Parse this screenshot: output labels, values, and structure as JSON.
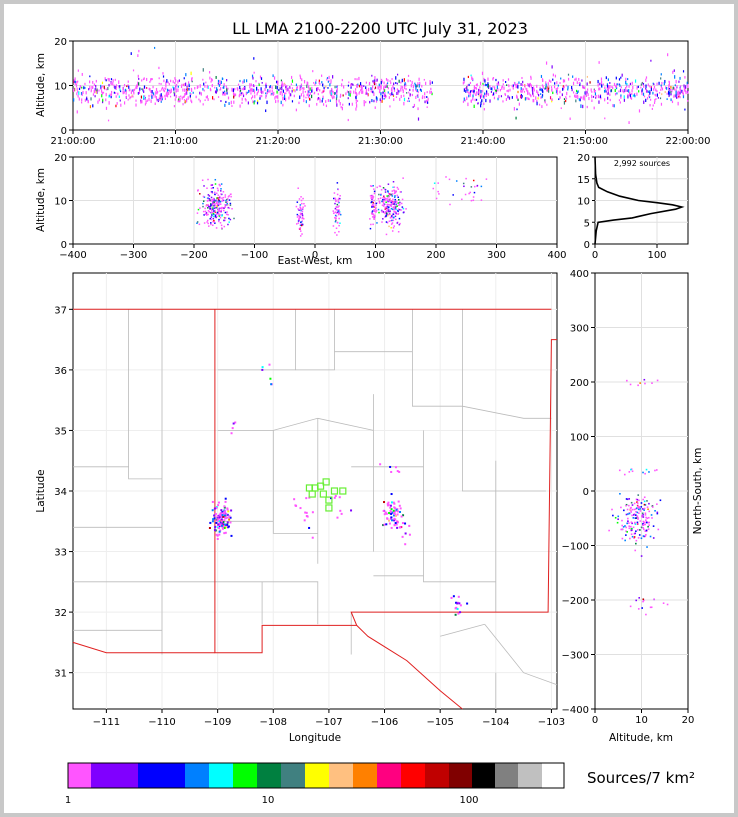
{
  "title": "LL LMA 2100-2200 UTC July 31, 2023",
  "time_height": {
    "ylabel": "Altitude, km",
    "ylim": [
      0,
      20
    ],
    "y_ticks": [
      "0",
      "10",
      "20"
    ],
    "x_ticks": [
      "21:00:00",
      "21:10:00",
      "21:20:00",
      "21:30:00",
      "21:40:00",
      "21:50:00",
      "22:00:00"
    ]
  },
  "ew_height": {
    "ylabel": "Altitude, km",
    "xlabel": "East-West, km",
    "ylim": [
      0,
      20
    ],
    "xlim": [
      -400,
      400
    ],
    "y_ticks": [
      "0",
      "10",
      "20"
    ],
    "x_ticks": [
      "−400",
      "−300",
      "−200",
      "−100",
      "0",
      "100",
      "200",
      "300",
      "400"
    ]
  },
  "histogram": {
    "label": "2,992 sources",
    "x_ticks": [
      "0",
      "100"
    ],
    "y_ticks": [
      "0",
      "5",
      "10",
      "15",
      "20"
    ]
  },
  "plan_view": {
    "xlabel": "Longitude",
    "ylabel": "Latitude",
    "xlim": [
      -111.6,
      -102.9
    ],
    "ylim": [
      30.4,
      37.6
    ],
    "x_ticks": [
      "−111",
      "−110",
      "−109",
      "−108",
      "−107",
      "−106",
      "−105",
      "−104",
      "−103"
    ],
    "y_ticks": [
      "31",
      "32",
      "33",
      "34",
      "35",
      "36",
      "37"
    ]
  },
  "ns_height": {
    "xlabel": "Altitude, km",
    "ylabel": "North-South, km",
    "xlim": [
      0,
      20
    ],
    "ylim": [
      -400,
      400
    ],
    "x_ticks": [
      "0",
      "10",
      "20"
    ],
    "y_ticks": [
      "−400",
      "−300",
      "−200",
      "−100",
      "0",
      "100",
      "200",
      "300",
      "400"
    ]
  },
  "colorbar": {
    "label": "Sources/7 km²",
    "tick_labels": [
      "1",
      "10",
      "100"
    ],
    "colors": [
      "#ff55ff",
      "#8000ff",
      "#0000ff",
      "#0080ff",
      "#00ffff",
      "#00ff00",
      "#008040",
      "#408080",
      "#ffff00",
      "#ffc080",
      "#ff8000",
      "#ff0080",
      "#ff0000",
      "#c00000",
      "#800000",
      "#000000",
      "#808080",
      "#c0c0c0",
      "#ffffff"
    ]
  },
  "chart_data": [
    {
      "type": "scatter",
      "title": "LL LMA 2100-2200 UTC July 31, 2023",
      "xlabel": "",
      "ylabel": "Altitude, km",
      "xlim": [
        "21:00:00",
        "22:00:00"
      ],
      "ylim": [
        0,
        20
      ],
      "clusters": [
        {
          "t": [
            0,
            8
          ],
          "alt": [
            5,
            12
          ]
        },
        {
          "t": [
            8,
            24
          ],
          "alt": [
            6,
            13
          ]
        },
        {
          "t": [
            24,
            35
          ],
          "alt": [
            6,
            12
          ]
        },
        {
          "t": [
            38,
            60
          ],
          "alt": [
            6,
            13
          ]
        }
      ]
    },
    {
      "type": "scatter",
      "xlabel": "East-West, km",
      "ylabel": "Altitude, km",
      "xlim": [
        -400,
        400
      ],
      "ylim": [
        0,
        20
      ],
      "clusters": [
        {
          "x": -165,
          "alt": 9
        },
        {
          "x": -25,
          "alt": 7
        },
        {
          "x": 35,
          "alt": 8
        },
        {
          "x": 95,
          "alt": 9
        },
        {
          "x": 125,
          "alt": 9
        },
        {
          "x": 230,
          "alt": 13
        }
      ]
    },
    {
      "type": "line",
      "label": "2,992 sources",
      "xlim": [
        0,
        150
      ],
      "ylim": [
        0,
        20
      ],
      "points": [
        [
          0,
          0
        ],
        [
          2,
          3
        ],
        [
          5,
          5
        ],
        [
          30,
          5.5
        ],
        [
          60,
          6
        ],
        [
          90,
          7
        ],
        [
          130,
          8
        ],
        [
          140,
          8.5
        ],
        [
          125,
          9
        ],
        [
          100,
          9.5
        ],
        [
          70,
          10
        ],
        [
          40,
          11
        ],
        [
          20,
          12
        ],
        [
          6,
          13
        ],
        [
          3,
          14
        ],
        [
          1,
          16
        ],
        [
          0,
          20
        ]
      ]
    },
    {
      "type": "scatter",
      "xlabel": "Longitude",
      "ylabel": "Latitude",
      "xlim": [
        -111.6,
        -102.9
      ],
      "ylim": [
        30.4,
        37.6
      ],
      "clusters": [
        {
          "lon": -108.95,
          "lat": 33.55,
          "n": 120
        },
        {
          "lon": -105.85,
          "lat": 33.65,
          "n": 70
        },
        {
          "lon": -107.5,
          "lat": 33.85,
          "n": 8
        },
        {
          "lon": -106.85,
          "lat": 33.75,
          "n": 8
        },
        {
          "lon": -107.4,
          "lat": 33.55,
          "n": 6
        },
        {
          "lon": -105.95,
          "lat": 34.3,
          "n": 6
        },
        {
          "lon": -108.1,
          "lat": 35.85,
          "n": 6
        },
        {
          "lon": -104.75,
          "lat": 32.1,
          "n": 15
        },
        {
          "lon": -108.75,
          "lat": 35.05,
          "n": 4
        },
        {
          "lon": -105.7,
          "lat": 33.35,
          "n": 8
        }
      ],
      "stations": [
        [
          -107.05,
          34.15
        ],
        [
          -107.25,
          34.05
        ],
        [
          -106.9,
          34.0
        ],
        [
          -107.0,
          33.85
        ],
        [
          -107.3,
          33.95
        ],
        [
          -107.1,
          33.95
        ],
        [
          -107.0,
          33.72
        ],
        [
          -106.75,
          34.0
        ],
        [
          -107.15,
          34.08
        ],
        [
          -107.35,
          34.05
        ]
      ]
    },
    {
      "type": "scatter",
      "xlabel": "Altitude, km",
      "ylabel": "North-South, km",
      "xlim": [
        0,
        20
      ],
      "ylim": [
        -400,
        400
      ],
      "clusters": [
        {
          "alt": 9,
          "ns": -50,
          "n": 180
        },
        {
          "alt": 9,
          "ns": 38,
          "n": 12
        },
        {
          "alt": 11,
          "ns": -205,
          "n": 15
        },
        {
          "alt": 10,
          "ns": 200,
          "n": 8
        }
      ]
    }
  ]
}
